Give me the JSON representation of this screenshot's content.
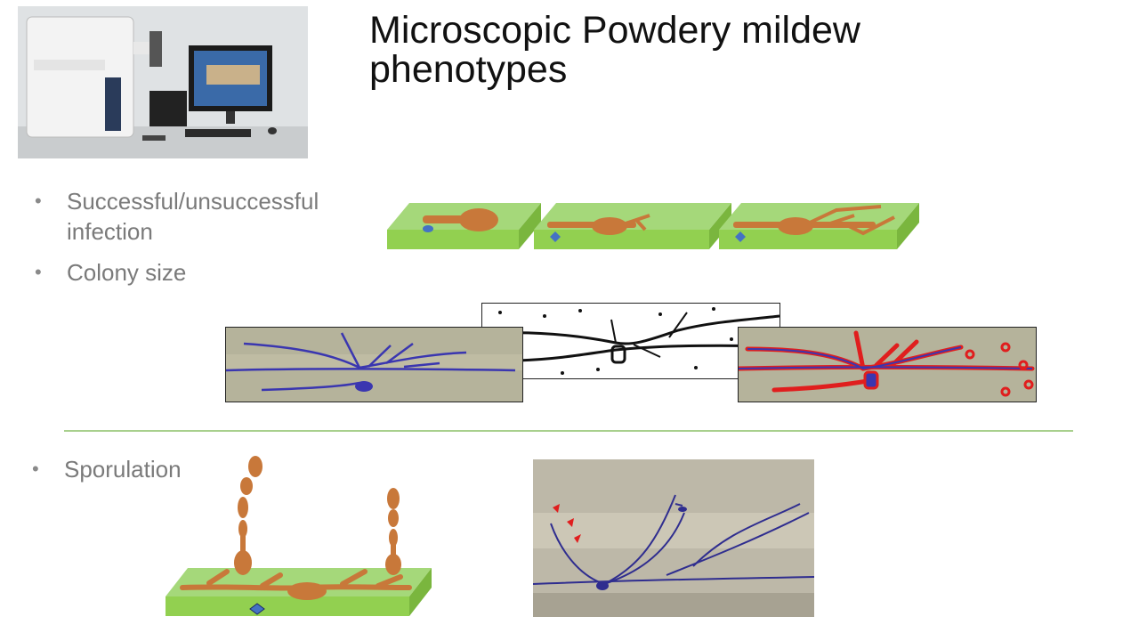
{
  "slide": {
    "title": "Microscopic Powdery mildew phenotypes",
    "bullets_top": [
      {
        "text": "Successful/unsuccessful infection"
      },
      {
        "text": "Colony size"
      }
    ],
    "bullet_bottom": {
      "text": "Sporulation"
    },
    "bullet_marker": "•"
  },
  "colors": {
    "leaf_green": "#92d050",
    "fungus_brown": "#c8783a",
    "haustorium_blue": "#4472c4",
    "stain_blue": "#3a36b0",
    "trace_red": "#e01e1e",
    "divider_green": "#a8d08d"
  },
  "icons": {
    "microscope_photo": "microscope-workstation-icon",
    "infection_diagram": "fungal-infection-stage-icon"
  }
}
